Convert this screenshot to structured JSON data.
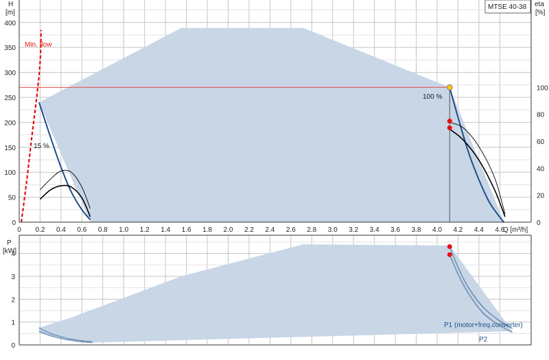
{
  "colors": {
    "envelope": "#c8d6e6",
    "curve_blue": "#1f4f8a",
    "eff_black": "#000000",
    "duty_line": "#e84a4a",
    "minflow": "#e01010",
    "dot_red": "#e81010",
    "dot_yellow": "#f2c414",
    "grid": "#c4c4c4",
    "text": "#222222"
  },
  "chart_data": [
    {
      "type": "line",
      "name": "head",
      "title_box": "MTSE 40-38",
      "xlabel": "Q [m³/h]",
      "ylabel_left": "H",
      "ylabel_left_unit": "[m]",
      "ylabel_right": "eta",
      "ylabel_right_unit": "[%]",
      "xlim": [
        0,
        4.9
      ],
      "ylim": [
        0,
        445
      ],
      "ylim_right": [
        0,
        164.8
      ],
      "x_ticks": [
        "0",
        "0.2",
        "0.4",
        "0.6",
        "0.8",
        "1.0",
        "1.2",
        "1.4",
        "1.6",
        "1.8",
        "2.0",
        "2.2",
        "2.4",
        "2.6",
        "2.8",
        "3.0",
        "3.2",
        "3.4",
        "3.6",
        "3.8",
        "4.0",
        "4.2",
        "4.4",
        "4.6"
      ],
      "x_tick_values": [
        0,
        0.2,
        0.4,
        0.6,
        0.8,
        1.0,
        1.2,
        1.4,
        1.6,
        1.8,
        2.0,
        2.2,
        2.4,
        2.6,
        2.8,
        3.0,
        3.2,
        3.4,
        3.6,
        3.8,
        4.0,
        4.2,
        4.4,
        4.6
      ],
      "y_ticks": [
        "0",
        "50",
        "100",
        "150",
        "200",
        "250",
        "300",
        "350",
        "400"
      ],
      "y_tick_values": [
        0,
        50,
        100,
        150,
        200,
        250,
        300,
        350,
        400
      ],
      "y_right_ticks": [
        "0",
        "20",
        "40",
        "60",
        "80",
        "100"
      ],
      "y_right_tick_values": [
        0,
        20,
        40,
        60,
        80,
        100
      ],
      "grid": true,
      "envelope": [
        [
          0.19,
          240
        ],
        [
          1.55,
          389
        ],
        [
          2.72,
          389
        ],
        [
          4.12,
          270
        ],
        [
          4.64,
          0
        ],
        [
          0.68,
          0
        ]
      ],
      "series": [
        {
          "role": "max_speed_curve",
          "values": [
            [
              4.12,
              270
            ],
            [
              4.2,
              210
            ],
            [
              4.3,
              140
            ],
            [
              4.4,
              85
            ],
            [
              4.5,
              40
            ],
            [
              4.6,
              10
            ],
            [
              4.64,
              0
            ]
          ]
        },
        {
          "role": "min_speed_curve",
          "values": [
            [
              0.19,
              240
            ],
            [
              0.3,
              170
            ],
            [
              0.4,
              110
            ],
            [
              0.5,
              60
            ],
            [
              0.6,
              25
            ],
            [
              0.68,
              5
            ]
          ]
        },
        {
          "role": "eta_low_outer",
          "axis": "right",
          "values": [
            [
              0.2,
              24
            ],
            [
              0.3,
              32
            ],
            [
              0.4,
              38
            ],
            [
              0.5,
              37
            ],
            [
              0.6,
              26
            ],
            [
              0.68,
              10
            ]
          ]
        },
        {
          "role": "eta_low_inner",
          "axis": "right",
          "values": [
            [
              0.2,
              17
            ],
            [
              0.3,
              24
            ],
            [
              0.4,
              27
            ],
            [
              0.5,
              26
            ],
            [
              0.6,
              18
            ],
            [
              0.68,
              4
            ]
          ]
        },
        {
          "role": "eta_high_outer",
          "axis": "right",
          "values": [
            [
              4.12,
              74
            ],
            [
              4.25,
              70
            ],
            [
              4.4,
              56
            ],
            [
              4.55,
              33
            ],
            [
              4.65,
              6
            ]
          ]
        },
        {
          "role": "eta_high_inner",
          "axis": "right",
          "values": [
            [
              4.12,
              69
            ],
            [
              4.25,
              61
            ],
            [
              4.4,
              46
            ],
            [
              4.55,
              24
            ],
            [
              4.65,
              4
            ]
          ]
        },
        {
          "role": "min_flow",
          "values": [
            [
              0.02,
              0
            ],
            [
              0.07,
              80
            ],
            [
              0.12,
              170
            ],
            [
              0.17,
              255
            ],
            [
              0.2,
              320
            ],
            [
              0.21,
              385
            ]
          ]
        }
      ],
      "duty_point": {
        "q": 4.12,
        "h": 270
      },
      "efficiency_points": [
        {
          "q": 4.12,
          "eta": 75
        },
        {
          "q": 4.12,
          "eta": 70
        }
      ],
      "annotations": {
        "min_flow": "Min. flow",
        "pct_15": "15 %",
        "pct_100": "100 %"
      }
    },
    {
      "type": "line",
      "name": "power",
      "ylabel": "P",
      "ylabel_unit": "[kW]",
      "xlim": [
        0,
        4.9
      ],
      "ylim": [
        0,
        4.8
      ],
      "y_ticks": [
        "0",
        "1",
        "2",
        "3",
        "4"
      ],
      "y_tick_values": [
        0,
        1,
        2,
        3,
        4
      ],
      "grid": true,
      "envelope": [
        [
          0.19,
          0.75
        ],
        [
          0.5,
          1.2
        ],
        [
          1.55,
          3.0
        ],
        [
          2.72,
          4.4
        ],
        [
          4.12,
          4.35
        ],
        [
          4.72,
          0.6
        ],
        [
          0.68,
          0.1
        ],
        [
          0.19,
          0.5
        ]
      ],
      "series": [
        {
          "name": "P1 (motor+freq.converter)",
          "values": [
            [
              4.12,
              4.3
            ],
            [
              4.2,
              3.4
            ],
            [
              4.3,
              2.5
            ],
            [
              4.45,
              1.6
            ],
            [
              4.6,
              1.05
            ],
            [
              4.72,
              0.72
            ]
          ]
        },
        {
          "name": "P2",
          "values": [
            [
              4.12,
              3.95
            ],
            [
              4.2,
              3.1
            ],
            [
              4.3,
              2.25
            ],
            [
              4.45,
              1.35
            ],
            [
              4.6,
              0.85
            ],
            [
              4.72,
              0.55
            ]
          ]
        },
        {
          "role": "p1_low",
          "values": [
            [
              0.19,
              0.75
            ],
            [
              0.3,
              0.5
            ],
            [
              0.45,
              0.3
            ],
            [
              0.6,
              0.18
            ],
            [
              0.7,
              0.14
            ]
          ]
        },
        {
          "role": "p2_low",
          "values": [
            [
              0.19,
              0.6
            ],
            [
              0.3,
              0.4
            ],
            [
              0.45,
              0.24
            ],
            [
              0.6,
              0.14
            ],
            [
              0.7,
              0.1
            ]
          ]
        }
      ],
      "points": [
        {
          "q": 4.12,
          "p": 4.3
        },
        {
          "q": 4.12,
          "p": 3.95
        }
      ],
      "series_labels": [
        "P1 (motor+freq.converter)",
        "P2"
      ]
    }
  ]
}
